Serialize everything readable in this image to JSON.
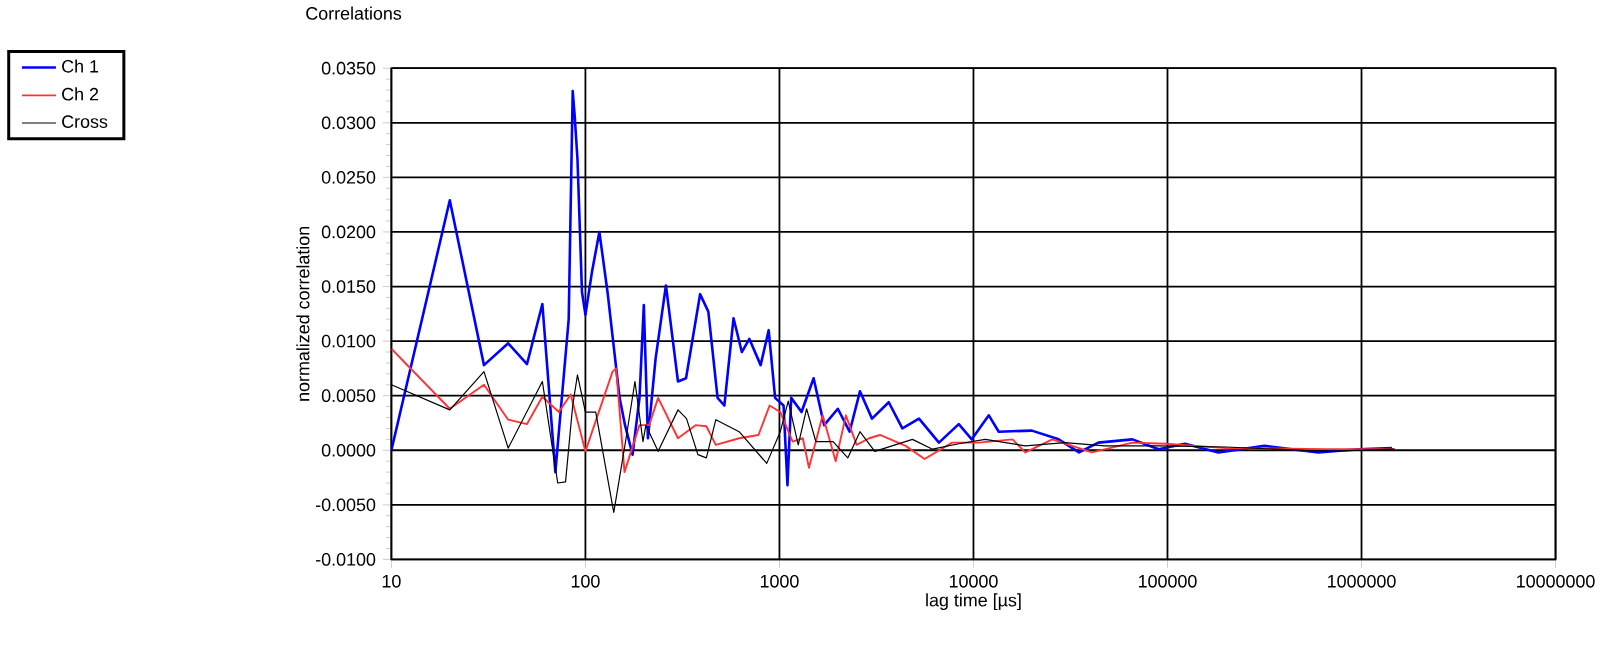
{
  "chart_data": {
    "type": "line",
    "title": "Correlations",
    "xlabel": "lag time [µs]",
    "ylabel": "normalized correlation",
    "log": "x",
    "grid": true,
    "legend": "top left",
    "marker": "none",
    "line_style": "solid",
    "xlim": [
      10,
      10000000
    ],
    "xticks": [
      10,
      100,
      1000,
      10000,
      100000,
      1000000,
      10000000
    ],
    "ylim": [
      -0.01,
      0.035
    ],
    "yticks": [
      {
        "value": -0.01,
        "label": "-0.0100"
      },
      {
        "value": -0.005,
        "label": "-0.0050"
      },
      {
        "value": 0,
        "label": "0.0000"
      },
      {
        "value": 0.005,
        "label": "0.0050"
      },
      {
        "value": 0.01,
        "label": "0.0100"
      },
      {
        "value": 0.015,
        "label": "0.0150"
      },
      {
        "value": 0.02,
        "label": "0.0200"
      },
      {
        "value": 0.025,
        "label": "0.0250"
      },
      {
        "value": 0.03,
        "label": "0.0300"
      },
      {
        "value": 0.035,
        "label": "0.0350"
      }
    ],
    "series": [
      {
        "name": "Ch 1",
        "color": "#0000ff",
        "x": [
          10,
          20,
          30,
          40,
          50,
          60,
          70,
          82,
          86,
          88,
          91,
          96,
          100,
          108,
          118,
          130,
          150,
          160,
          175,
          190,
          200,
          210,
          230,
          260,
          300,
          330,
          390,
          430,
          480,
          520,
          580,
          640,
          700,
          800,
          880,
          950,
          1050,
          1100,
          1150,
          1300,
          1500,
          1700,
          2000,
          2300,
          2600,
          3000,
          3660,
          4300,
          5240,
          6640,
          8400,
          9800,
          12000,
          13500,
          20000,
          27500,
          35000,
          44000,
          66000,
          90000,
          123000,
          183000,
          316000,
          600000,
          960000,
          1435000
        ],
        "values": [
          0,
          0.0229,
          0.0078,
          0.0098,
          0.0079,
          0.0134,
          -0.002,
          0.012,
          0.0329,
          0.0307,
          0.0267,
          0.0145,
          0.0124,
          0.0163,
          0.02,
          0.0145,
          0.0048,
          0.0023,
          -0.0004,
          0.0048,
          0.0133,
          0.0011,
          0.0084,
          0.0151,
          0.0063,
          0.0066,
          0.0143,
          0.0127,
          0.0048,
          0.0041,
          0.0121,
          0.009,
          0.0102,
          0.0078,
          0.011,
          0.0048,
          0.0041,
          -0.0032,
          0.0048,
          0.0035,
          0.0066,
          0.0023,
          0.0038,
          0.0017,
          0.0054,
          0.0029,
          0.0044,
          0.002,
          0.0029,
          0.0007,
          0.0024,
          0.001,
          0.0032,
          0.0017,
          0.0018,
          0.001,
          -0.0002,
          0.0007,
          0.001,
          0.0001,
          0.0006,
          -0.0002,
          0.0004,
          -0.0002,
          0.0001,
          0.0002
        ]
      },
      {
        "name": "Ch 2",
        "color": "#ff3333",
        "x": [
          10,
          20,
          30,
          40,
          50,
          60,
          73,
          84,
          100,
          138,
          144,
          159,
          190,
          213,
          237,
          300,
          370,
          420,
          470,
          620,
          780,
          890,
          1010,
          1170,
          1320,
          1420,
          1670,
          1950,
          2200,
          2500,
          2900,
          3300,
          4470,
          5600,
          7760,
          10700,
          15900,
          18500,
          25500,
          40800,
          66000,
          98000,
          200000,
          650000,
          1480000
        ],
        "values": [
          0.0093,
          0.0038,
          0.006,
          0.0028,
          0.0024,
          0.0049,
          0.0035,
          0.0051,
          -0.0001,
          0.0072,
          0.0075,
          -0.002,
          0.0023,
          0.0023,
          0.0048,
          0.0011,
          0.0023,
          0.0022,
          0.0005,
          0.0011,
          0.0014,
          0.0041,
          0.0035,
          0.0008,
          0.0011,
          -0.0016,
          0.0032,
          -0.001,
          0.0032,
          0.0005,
          0.0011,
          0.0014,
          0.0004,
          -0.0008,
          0.0007,
          0.0007,
          0.001,
          -0.0002,
          0.001,
          -0.0002,
          0.0007,
          0.0006,
          0.0002,
          0.0001,
          0.0001
        ]
      },
      {
        "name": "Cross",
        "color": "#000000",
        "x": [
          10,
          20,
          30,
          40,
          60,
          68,
          72,
          79,
          86,
          91,
          100,
          113,
          140,
          162,
          180,
          198,
          205,
          237,
          300,
          332,
          380,
          420,
          470,
          620,
          860,
          1010,
          1110,
          1250,
          1380,
          1540,
          1890,
          2250,
          2600,
          3100,
          4850,
          6150,
          8400,
          11500,
          18500,
          29600,
          47500,
          90000,
          200000,
          650000,
          1480000
        ],
        "values": [
          0.006,
          0.0037,
          0.0072,
          0.0002,
          0.0063,
          -0.0001,
          -0.003,
          -0.0029,
          0.0041,
          0.0069,
          0.0035,
          0.0035,
          -0.0057,
          0.0011,
          0.0063,
          0.0008,
          0.0023,
          -0.0001,
          0.0037,
          0.0029,
          -0.0004,
          -0.0007,
          0.0028,
          0.0017,
          -0.0012,
          0.0017,
          0.0045,
          0.0005,
          0.0038,
          0.0008,
          0.0008,
          -0.0007,
          0.0017,
          -0.0001,
          0.001,
          0.0001,
          0.0006,
          0.001,
          0.0004,
          0.0007,
          0.0004,
          0.0004,
          0.0003,
          -0.0001,
          0.0001
        ]
      }
    ]
  }
}
